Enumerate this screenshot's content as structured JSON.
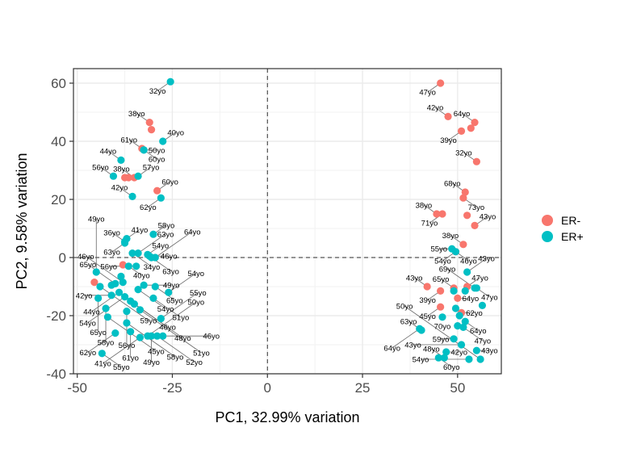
{
  "chart_data": {
    "type": "scatter",
    "xlabel": "PC1, 32.99% variation",
    "ylabel": "PC2, 9.58% variation",
    "xlim": [
      -51,
      61.5
    ],
    "ylim": [
      -40,
      65
    ],
    "xticks": [
      -50,
      -25,
      0,
      25,
      50
    ],
    "yticks": [
      -40,
      -20,
      0,
      20,
      40,
      60
    ],
    "xtick_labels": [
      "-50",
      "-25",
      "0",
      "25",
      "50"
    ],
    "ytick_labels": [
      "-40",
      "-20",
      "0",
      "20",
      "40",
      "60"
    ],
    "reference_lines": {
      "x": 0,
      "y": 0
    },
    "grid": true,
    "legend_position": "right",
    "colors": {
      "ER-": "#F8766D",
      "ER+": "#00BFC4"
    },
    "series": [
      {
        "name": "ER-",
        "points": [
          {
            "x": 45.5,
            "y": 60,
            "label": "47yo"
          },
          {
            "x": 47.5,
            "y": 48.5,
            "label": "42yo"
          },
          {
            "x": 51,
            "y": 43.5,
            "label": "39yo"
          },
          {
            "x": 53.5,
            "y": 44.5
          },
          {
            "x": 54.5,
            "y": 46.5,
            "label": "64yo"
          },
          {
            "x": 55,
            "y": 33,
            "label": "32yo"
          },
          {
            "x": 52,
            "y": 22.5,
            "label": "68yo"
          },
          {
            "x": 51.5,
            "y": 20.5,
            "label": "73yo"
          },
          {
            "x": 44.5,
            "y": 15,
            "label": "38yo"
          },
          {
            "x": 46,
            "y": 15,
            "label": "71yo"
          },
          {
            "x": 52.5,
            "y": 14.5
          },
          {
            "x": 54.5,
            "y": 11,
            "label": "43yo"
          },
          {
            "x": 51.5,
            "y": 4.5,
            "label": "38yo"
          },
          {
            "x": 49.5,
            "y": 2,
            "label": "54yo"
          },
          {
            "x": 42,
            "y": -10,
            "label": "43yo"
          },
          {
            "x": 45.5,
            "y": -11.5,
            "label": "39yo"
          },
          {
            "x": 49,
            "y": -10.5,
            "label": "65yo"
          },
          {
            "x": 52.5,
            "y": -10,
            "label": "47yo"
          },
          {
            "x": 50,
            "y": -14,
            "label": "64yo"
          },
          {
            "x": 45.5,
            "y": -17,
            "label": "45yo"
          },
          {
            "x": 51,
            "y": -19,
            "label": "62yo"
          },
          {
            "x": -31,
            "y": 46.5,
            "label": "38yo"
          },
          {
            "x": -30.5,
            "y": 44
          },
          {
            "x": -33,
            "y": 37.5,
            "label": "61yo"
          },
          {
            "x": -37.5,
            "y": 27.5
          },
          {
            "x": -36.5,
            "y": 27.5
          },
          {
            "x": -35,
            "y": 27.5,
            "label": "38yo"
          },
          {
            "x": -29,
            "y": 23,
            "label": "60yo"
          },
          {
            "x": -38,
            "y": -2.5
          },
          {
            "x": -45.5,
            "y": -8.5
          }
        ]
      },
      {
        "name": "ER+",
        "points": [
          {
            "x": -25.5,
            "y": 60.5,
            "label": "32yo"
          },
          {
            "x": -27.5,
            "y": 40,
            "label": "40yo"
          },
          {
            "x": -32.5,
            "y": 37,
            "label": "60yo"
          },
          {
            "x": -38.5,
            "y": 33.5,
            "label": "44yo"
          },
          {
            "x": -32.5,
            "y": 37,
            "label": "50yo"
          },
          {
            "x": -40.5,
            "y": 28,
            "label": "56yo"
          },
          {
            "x": -34,
            "y": 28,
            "label": "57yo"
          },
          {
            "x": -28,
            "y": 20.5,
            "label": "62yo"
          },
          {
            "x": -35.5,
            "y": 21,
            "label": "42yo"
          },
          {
            "x": -37.5,
            "y": 5.5,
            "label": "36yo"
          },
          {
            "x": -37,
            "y": 6.5,
            "label": "41yo"
          },
          {
            "x": -30,
            "y": 8,
            "label": "58yo"
          },
          {
            "x": -31.5,
            "y": 1,
            "label": "54yo"
          },
          {
            "x": -37.5,
            "y": 5,
            "label": "63yo"
          },
          {
            "x": -35.5,
            "y": 1.5,
            "label": "34yo"
          },
          {
            "x": -31,
            "y": 0.5,
            "label": "46yo"
          },
          {
            "x": -34,
            "y": 1.5,
            "label": "63yo"
          },
          {
            "x": -30.5,
            "y": 0,
            "label": "63yo"
          },
          {
            "x": -29.5,
            "y": 0,
            "label": "64yo"
          },
          {
            "x": -36.5,
            "y": -3,
            "label": "40yo"
          },
          {
            "x": -34.5,
            "y": -3,
            "label": "56yo"
          },
          {
            "x": -45,
            "y": -5,
            "label": "49yo"
          },
          {
            "x": -38.5,
            "y": -6.5
          },
          {
            "x": -38,
            "y": -8.5,
            "label": "46yo"
          },
          {
            "x": -40,
            "y": -9,
            "label": "65yo"
          },
          {
            "x": -41,
            "y": -9.5
          },
          {
            "x": -44,
            "y": -10,
            "label": "59yo"
          },
          {
            "x": -34,
            "y": -11,
            "label": "54yo"
          },
          {
            "x": -32.5,
            "y": -9.5,
            "label": "49yo"
          },
          {
            "x": -29.5,
            "y": -10,
            "label": "65yo"
          },
          {
            "x": -26,
            "y": -12,
            "label": "54yo"
          },
          {
            "x": -30,
            "y": -14,
            "label": "51yo"
          },
          {
            "x": -39,
            "y": -12,
            "label": "44yo"
          },
          {
            "x": -41,
            "y": -13,
            "label": "42yo"
          },
          {
            "x": -37.5,
            "y": -13.5,
            "label": "54yo"
          },
          {
            "x": -44.5,
            "y": -14,
            "label": "65yo"
          },
          {
            "x": -36,
            "y": -15,
            "label": "46yo"
          },
          {
            "x": -35,
            "y": -16,
            "label": "48yo"
          },
          {
            "x": -42.5,
            "y": -17.5,
            "label": "58yo"
          },
          {
            "x": -37,
            "y": -18.5,
            "label": "56yo"
          },
          {
            "x": -33.5,
            "y": -18,
            "label": "51yo"
          },
          {
            "x": -28,
            "y": -21,
            "label": "55yo"
          },
          {
            "x": -42,
            "y": -20.5,
            "label": "45yo"
          },
          {
            "x": -37,
            "y": -22.5,
            "label": "58yo"
          },
          {
            "x": -36,
            "y": -25.5,
            "label": "61yo"
          },
          {
            "x": -40,
            "y": -26,
            "label": "62yo"
          },
          {
            "x": -33.5,
            "y": -27.5,
            "label": "41yo"
          },
          {
            "x": -31.5,
            "y": -27,
            "label": "50yo"
          },
          {
            "x": -30.5,
            "y": -27,
            "label": "49yo"
          },
          {
            "x": -29,
            "y": -27,
            "label": "52yo"
          },
          {
            "x": -27.5,
            "y": -27,
            "label": "46yo"
          },
          {
            "x": -43.5,
            "y": -33,
            "label": "55yo"
          },
          {
            "x": 48.5,
            "y": 3,
            "label": "55yo"
          },
          {
            "x": 49.5,
            "y": 2,
            "label": "46yo"
          },
          {
            "x": 52.5,
            "y": -5,
            "label": "43yo"
          },
          {
            "x": 49,
            "y": -11.5
          },
          {
            "x": 52,
            "y": -11.5
          },
          {
            "x": 55,
            "y": -10.5,
            "label": "47yo"
          },
          {
            "x": 54.5,
            "y": -10.5,
            "label": "69yo"
          },
          {
            "x": 56.5,
            "y": -16.5
          },
          {
            "x": 49.5,
            "y": -17.5
          },
          {
            "x": 50.5,
            "y": -20
          },
          {
            "x": 52,
            "y": -22,
            "label": "64yo"
          },
          {
            "x": 46,
            "y": -20.5,
            "label": "70yo"
          },
          {
            "x": 40.5,
            "y": -25,
            "label": "63yo"
          },
          {
            "x": 50,
            "y": -23.5
          },
          {
            "x": 51.5,
            "y": -24,
            "label": "47yo"
          },
          {
            "x": 49,
            "y": -28,
            "label": "59yo"
          },
          {
            "x": 51,
            "y": -30,
            "label": "43yo"
          },
          {
            "x": 47,
            "y": -32.5,
            "label": "42yo"
          },
          {
            "x": 55,
            "y": -32,
            "label": "43yo"
          },
          {
            "x": 53,
            "y": -35,
            "label": "54yo"
          },
          {
            "x": 56,
            "y": -35,
            "label": "50yo"
          },
          {
            "x": 40,
            "y": -24.5,
            "label": "64yo"
          },
          {
            "x": 45,
            "y": -34.5,
            "label": "60yo"
          },
          {
            "x": 46.5,
            "y": -34.5,
            "label": "48yo"
          }
        ]
      }
    ],
    "legend": {
      "entries": [
        "ER-",
        "ER+"
      ]
    }
  }
}
